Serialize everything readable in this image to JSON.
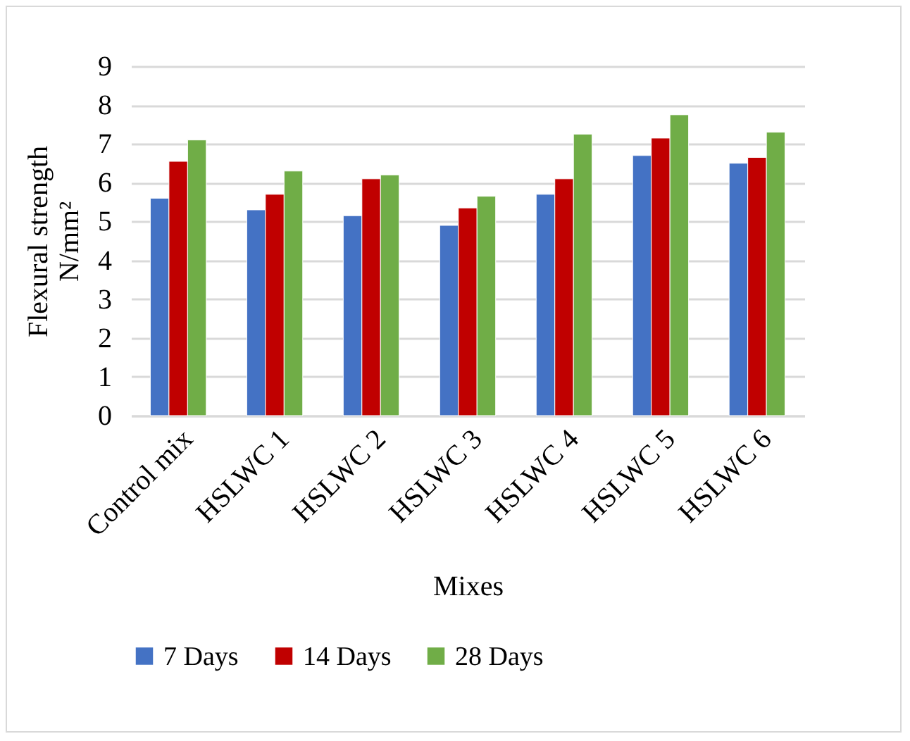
{
  "chart_data": {
    "type": "bar",
    "xlabel": "Mixes",
    "ylabel": "Flexural strength N/mm²",
    "categories": [
      "Control mix",
      "HSLWC 1",
      "HSLWC 2",
      "HSLWC 3",
      "HSLWC 4",
      "HSLWC 5",
      "HSLWC 6"
    ],
    "series": [
      {
        "name": "7 Days",
        "color": "#4472c4",
        "values": [
          5.6,
          5.3,
          5.15,
          4.9,
          5.7,
          6.7,
          6.5
        ]
      },
      {
        "name": "14 Days",
        "color": "#c00000",
        "values": [
          6.55,
          5.7,
          6.1,
          5.35,
          6.1,
          7.15,
          6.65
        ]
      },
      {
        "name": "28 Days",
        "color": "#70ad47",
        "values": [
          7.1,
          6.3,
          6.2,
          5.65,
          7.25,
          7.75,
          7.3
        ]
      }
    ],
    "ylim": [
      0,
      9
    ],
    "yticks": [
      0,
      1,
      2,
      3,
      4,
      5,
      6,
      7,
      8,
      9
    ],
    "grid": "y",
    "legend": "bottom"
  }
}
